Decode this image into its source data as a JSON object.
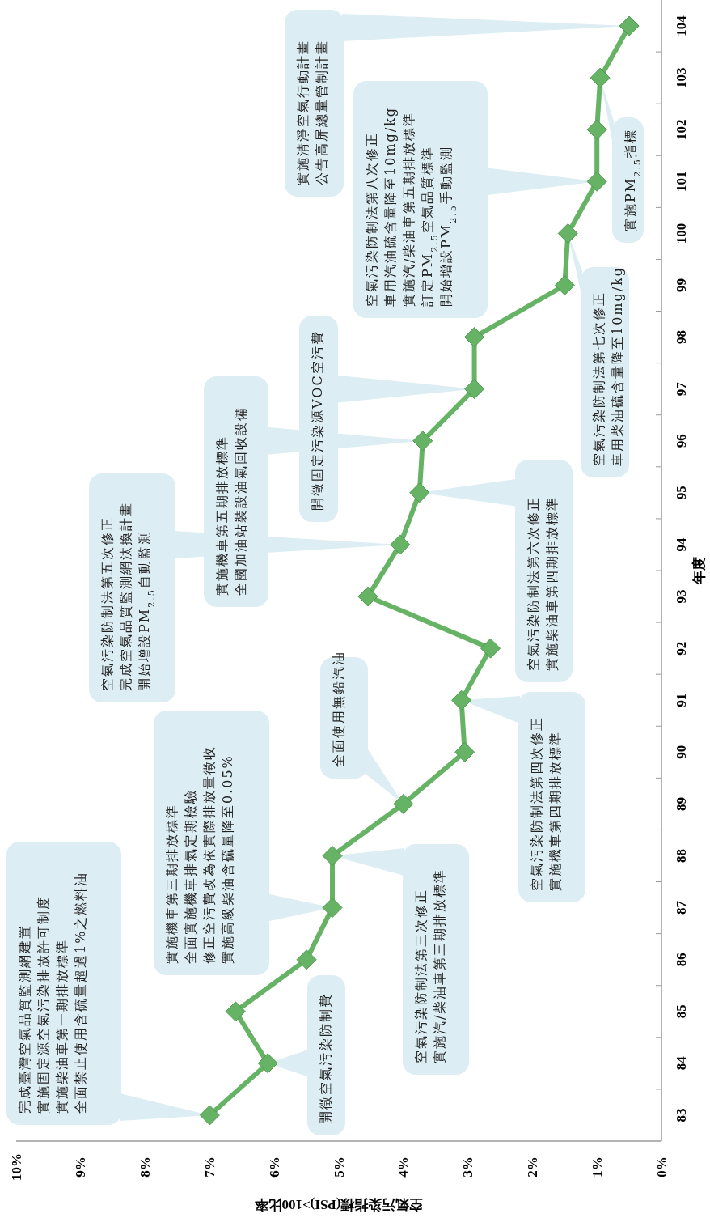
{
  "chart_data": {
    "type": "line",
    "series": [
      {
        "color": "#66b366",
        "x": [
          7.0,
          6.1,
          6.6,
          5.5,
          5.1,
          5.1,
          4.0,
          3.05,
          3.1,
          2.65,
          4.55,
          4.05,
          3.75,
          3.7,
          2.9,
          2.9,
          1.5,
          1.45,
          1.0,
          1.0,
          0.95,
          0.5
        ],
        "values": [
          83,
          84,
          85,
          86,
          87,
          88,
          89,
          90,
          91,
          92,
          93,
          94,
          95,
          96,
          97,
          98,
          99,
          100,
          101,
          102,
          103,
          104
        ]
      }
    ],
    "xlim": [
      10,
      0
    ],
    "xticks": [
      {
        "value": 10,
        "label": "10%"
      },
      {
        "value": 9,
        "label": "9%"
      },
      {
        "value": 8,
        "label": "8%"
      },
      {
        "value": 7,
        "label": "7%"
      },
      {
        "value": 6,
        "label": "6%"
      },
      {
        "value": 5,
        "label": "5%"
      },
      {
        "value": 4,
        "label": "4%"
      },
      {
        "value": 3,
        "label": "3%"
      },
      {
        "value": 2,
        "label": "2%"
      },
      {
        "value": 1,
        "label": "1%"
      },
      {
        "value": 0,
        "label": "0%"
      }
    ],
    "ylim": [
      82.5,
      104.5
    ],
    "yticks": [
      83,
      84,
      85,
      86,
      87,
      88,
      89,
      90,
      91,
      92,
      93,
      94,
      95,
      96,
      97,
      98,
      99,
      100,
      101,
      102,
      103,
      104
    ],
    "xlabel": "空氣污染指標(PSI)>100比率",
    "ylabel": "年度",
    "marker": "diamond",
    "line_style": "solid",
    "annotations": [
      "完成臺灣空氣品質監測網建置實施固定源空氣污染排放許可制度實施柴油車第一期排放標準全面禁止使用含硫量超過1%之燃料油",
      "開徵空氣污染防制費",
      "實施機車第三期排放標準全面實施機車排氣定期檢驗修正空污費改為依實際排放量徵收實施高級柴油含硫量降至0.05%",
      {
        "text": "空氣污染防制法第三次修正實施汽/柴油車第三期排放標準",
        "x": 5.1,
        "y": 88
      },
      "全面使用無鉛汽油",
      {
        "text": "空氣污染防制法第四次修正實施機車第四期排放標準",
        "x": 3.1,
        "y": 91
      },
      "空氣污染防制法第五次修正完成空氣品質監測網汰換計畫開始增設PM$_{2.5}$自動監測",
      "實施機車第五期排放標準全國加油站裝設油氣回收設備",
      {
        "text": "空氣污染防制法第六次修正實施柴油車第四期排放標準",
        "x": 3.75,
        "y": 95
      },
      {
        "text": "開徵固定污染源VOC空污費",
        "x": 2.9,
        "y": 97
      },
      "空氣污染防制法第八次修正車用汽油硫含量降至10mg/kg實施汽/柴油車第五期排放標準訂定PM$_{2.5}$空氣品質標準開始增設PM$_{2.5}$手動監測",
      {
        "text": "空氣污染防制法第七次修正車用柴油硫含量降至10mg/kg",
        "x": 1.45,
        "y": 100
      },
      {
        "text": "實施PM$_{2.5}$指標",
        "x": 0.95,
        "y": 103
      },
      {
        "text": "實施清淨空氣行動計畫公告高屏總量管制計畫",
        "x": 0.5,
        "y": 104
      }
    ]
  }
}
